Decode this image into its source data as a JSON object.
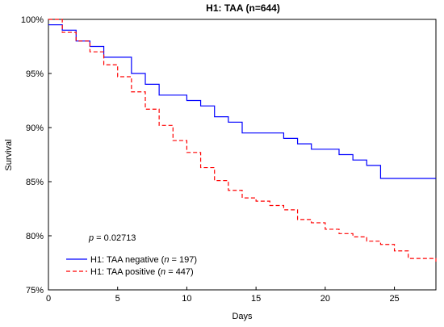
{
  "chart_data": {
    "type": "line",
    "title": "H1: TAA (n=644)",
    "xlabel": "Days",
    "ylabel": "Survival",
    "xlim": [
      0,
      28
    ],
    "ylim": [
      75,
      100
    ],
    "x_ticks": [
      0,
      5,
      10,
      15,
      20,
      25
    ],
    "y_ticks": [
      75,
      80,
      85,
      90,
      95,
      100
    ],
    "y_tick_labels": [
      "75%",
      "80%",
      "85%",
      "90%",
      "95%",
      "100%"
    ],
    "grid": false,
    "step": true,
    "legend_position": "bottom-left",
    "annotation": {
      "prefix": "p",
      "text": " = 0.02713"
    },
    "series": [
      {
        "name_prefix": "H1: TAA negative (",
        "name_n": "n",
        "name_suffix": " = 197)",
        "color": "#0000ff",
        "dash": "solid",
        "x": [
          0,
          1,
          2,
          3,
          4,
          6,
          7,
          8,
          10,
          11,
          12,
          13,
          14,
          17,
          18,
          19,
          21,
          22,
          23,
          24,
          28
        ],
        "y": [
          99.5,
          99.0,
          98.0,
          97.5,
          96.5,
          95.0,
          94.0,
          93.0,
          92.5,
          92.0,
          91.0,
          90.5,
          89.5,
          89.0,
          88.5,
          88.0,
          87.5,
          87.0,
          86.5,
          85.3,
          85.3
        ]
      },
      {
        "name_prefix": "H1: TAA positive (",
        "name_n": "n",
        "name_suffix": " = 447)",
        "color": "#ff0000",
        "dash": "dashed",
        "x": [
          0,
          1,
          2,
          3,
          4,
          5,
          6,
          7,
          8,
          9,
          10,
          11,
          12,
          13,
          14,
          15,
          16,
          17,
          18,
          19,
          20,
          21,
          22,
          23,
          24,
          25,
          26,
          28
        ],
        "y": [
          100,
          98.8,
          98.0,
          97.0,
          95.8,
          94.7,
          93.3,
          91.7,
          90.2,
          88.8,
          87.7,
          86.3,
          85.1,
          84.2,
          83.5,
          83.2,
          82.8,
          82.4,
          81.5,
          81.2,
          80.6,
          80.2,
          79.9,
          79.5,
          79.2,
          78.6,
          77.9,
          77.6
        ]
      }
    ]
  }
}
